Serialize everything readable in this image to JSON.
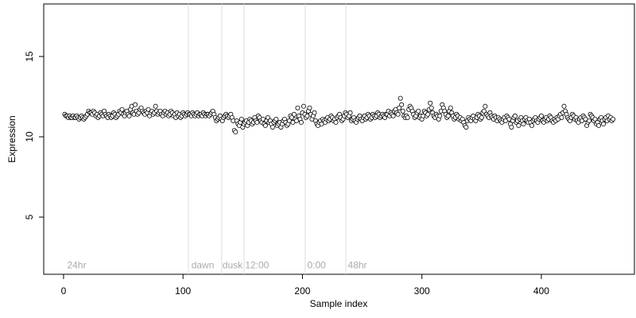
{
  "chart_data": {
    "type": "scatter",
    "xlabel": "Sample index",
    "ylabel": "Expression",
    "xlim": [
      -16.6,
      477.9
    ],
    "ylim": [
      1.44,
      18.27
    ],
    "xticks": [
      0,
      100,
      200,
      300,
      400
    ],
    "yticks": [
      5,
      10,
      15
    ],
    "vlines": [
      104.5,
      132.4,
      151.1,
      202.3,
      236.3
    ],
    "vline_color": "#dddddd",
    "annotations": [
      {
        "text": "24hr",
        "x": 3
      },
      {
        "text": "dawn",
        "x": 107
      },
      {
        "text": "dusk",
        "x": 133
      },
      {
        "text": "12:00",
        "x": 152
      },
      {
        "text": "0:00",
        "x": 204
      },
      {
        "text": "48hr",
        "x": 238
      }
    ],
    "annotation_y": 1.98,
    "series": [
      {
        "color": "#ffffff",
        "edge": "#000000",
        "x": [
          1,
          2,
          3,
          4,
          5,
          6,
          7,
          8,
          9,
          10,
          11,
          12,
          13,
          14,
          15,
          16,
          17,
          18,
          19,
          20,
          21,
          22,
          23,
          24,
          25,
          26,
          27,
          28,
          29,
          30,
          31,
          32,
          33,
          34,
          35,
          36,
          37,
          38,
          39,
          40,
          41,
          42,
          43,
          44,
          45,
          46,
          47,
          48,
          49,
          50,
          51,
          52,
          53,
          54,
          55,
          56,
          57,
          58,
          59,
          60,
          61,
          62,
          63,
          64,
          65,
          66,
          67,
          68,
          69,
          70,
          71,
          72,
          73,
          74,
          75,
          76,
          77,
          78,
          79,
          80,
          81,
          82,
          83,
          84,
          85,
          86,
          87,
          88,
          89,
          90,
          91,
          92,
          93,
          94,
          95,
          96,
          97,
          98,
          99,
          100,
          101,
          102,
          103,
          104,
          105,
          106,
          107,
          108,
          109,
          110,
          111,
          112,
          113,
          114,
          115,
          116,
          117,
          118,
          119,
          120,
          121,
          122,
          123,
          124,
          125,
          126,
          127,
          128,
          129,
          130,
          131,
          132,
          133,
          134,
          135,
          136,
          137,
          138,
          139,
          140,
          141,
          142,
          143,
          144,
          145,
          146,
          147,
          148,
          149,
          150,
          151,
          152,
          153,
          154,
          155,
          156,
          157,
          158,
          159,
          160,
          161,
          162,
          163,
          164,
          165,
          166,
          167,
          168,
          169,
          170,
          171,
          172,
          173,
          174,
          175,
          176,
          177,
          178,
          179,
          180,
          181,
          182,
          183,
          184,
          185,
          186,
          187,
          188,
          189,
          190,
          191,
          192,
          193,
          194,
          195,
          196,
          197,
          198,
          199,
          200,
          201,
          202,
          203,
          204,
          205,
          206,
          207,
          208,
          209,
          210,
          211,
          212,
          213,
          214,
          215,
          216,
          217,
          218,
          219,
          220,
          221,
          222,
          223,
          224,
          225,
          226,
          227,
          228,
          229,
          230,
          231,
          232,
          233,
          234,
          235,
          236,
          237,
          238,
          239,
          240,
          241,
          242,
          243,
          244,
          245,
          246,
          247,
          248,
          249,
          250,
          251,
          252,
          253,
          254,
          255,
          256,
          257,
          258,
          259,
          260,
          261,
          262,
          263,
          264,
          265,
          266,
          267,
          268,
          269,
          270,
          271,
          272,
          273,
          274,
          275,
          276,
          277,
          278,
          279,
          280,
          281,
          282,
          283,
          284,
          285,
          286,
          287,
          288,
          289,
          290,
          291,
          292,
          293,
          294,
          295,
          296,
          297,
          298,
          299,
          300,
          301,
          302,
          303,
          304,
          305,
          306,
          307,
          308,
          309,
          310,
          311,
          312,
          313,
          314,
          315,
          316,
          317,
          318,
          319,
          320,
          321,
          322,
          323,
          324,
          325,
          326,
          327,
          328,
          329,
          330,
          331,
          332,
          333,
          334,
          335,
          336,
          337,
          338,
          339,
          340,
          341,
          342,
          343,
          344,
          345,
          346,
          347,
          348,
          349,
          350,
          351,
          352,
          353,
          354,
          355,
          356,
          357,
          358,
          359,
          360,
          361,
          362,
          363,
          364,
          365,
          366,
          367,
          368,
          369,
          370,
          371,
          372,
          373,
          374,
          375,
          376,
          377,
          378,
          379,
          380,
          381,
          382,
          383,
          384,
          385,
          386,
          387,
          388,
          389,
          390,
          391,
          392,
          393,
          394,
          395,
          396,
          397,
          398,
          399,
          400,
          401,
          402,
          403,
          404,
          405,
          406,
          407,
          408,
          409,
          410,
          411,
          412,
          413,
          414,
          415,
          416,
          417,
          418,
          419,
          420,
          421,
          422,
          423,
          424,
          425,
          426,
          427,
          428,
          429,
          430,
          431,
          432,
          433,
          434,
          435,
          436,
          437,
          438,
          439,
          440,
          441,
          442,
          443,
          444,
          445,
          446,
          447,
          448,
          449,
          450,
          451,
          452,
          453,
          454,
          455,
          456,
          457,
          458,
          459,
          460
        ],
        "values": [
          11.4,
          11.3,
          11.3,
          11.2,
          11.3,
          11.2,
          11.2,
          11.3,
          11.2,
          11.2,
          11.3,
          11.2,
          11.1,
          11.2,
          11.3,
          11.2,
          11.1,
          11.2,
          11.3,
          11.4,
          11.6,
          11.5,
          11.5,
          11.4,
          11.6,
          11.5,
          11.3,
          11.4,
          11.2,
          11.3,
          11.5,
          11.4,
          11.3,
          11.6,
          11.4,
          11.3,
          11.2,
          11.4,
          11.3,
          11.2,
          11.3,
          11.5,
          11.4,
          11.2,
          11.3,
          11.4,
          11.6,
          11.5,
          11.7,
          11.4,
          11.3,
          11.5,
          11.6,
          11.4,
          11.3,
          11.7,
          11.9,
          11.5,
          11.4,
          12.0,
          11.6,
          11.4,
          11.5,
          11.7,
          11.8,
          11.6,
          11.5,
          11.4,
          11.6,
          11.5,
          11.7,
          11.3,
          11.5,
          11.6,
          11.4,
          11.5,
          11.9,
          11.6,
          11.4,
          11.5,
          11.6,
          11.4,
          11.3,
          11.5,
          11.6,
          11.4,
          11.5,
          11.3,
          11.4,
          11.6,
          11.5,
          11.3,
          11.4,
          11.2,
          11.5,
          11.3,
          11.4,
          11.2,
          11.3,
          11.5,
          11.4,
          11.3,
          11.4,
          11.5,
          11.4,
          11.4,
          11.3,
          11.5,
          11.4,
          11.3,
          11.4,
          11.5,
          11.3,
          11.4,
          11.4,
          11.3,
          11.5,
          11.4,
          11.3,
          11.4,
          11.4,
          11.3,
          11.4,
          11.5,
          11.6,
          11.4,
          11.2,
          11.0,
          11.1,
          11.2,
          11.3,
          11.1,
          11.0,
          11.2,
          11.3,
          11.4,
          11.3,
          11.2,
          11.3,
          11.4,
          11.2,
          11.0,
          10.4,
          10.3,
          11.0,
          10.8,
          10.7,
          10.9,
          11.1,
          10.6,
          10.8,
          10.9,
          11.0,
          10.7,
          10.9,
          11.1,
          11.0,
          10.8,
          10.9,
          11.2,
          11.0,
          10.9,
          11.3,
          11.2,
          11.0,
          10.9,
          11.1,
          10.8,
          10.7,
          11.0,
          11.2,
          10.9,
          11.0,
          10.8,
          10.6,
          10.9,
          11.0,
          11.1,
          10.7,
          10.8,
          10.9,
          10.6,
          10.8,
          11.0,
          11.1,
          10.9,
          10.7,
          10.8,
          11.0,
          11.3,
          11.2,
          10.9,
          11.4,
          11.1,
          11.0,
          11.8,
          11.3,
          11.1,
          10.9,
          11.5,
          11.9,
          11.4,
          11.2,
          11.3,
          11.6,
          11.8,
          11.4,
          11.1,
          11.3,
          11.5,
          11.0,
          10.8,
          10.7,
          10.9,
          11.0,
          10.8,
          11.1,
          11.0,
          10.9,
          11.1,
          11.2,
          11.0,
          11.1,
          11.3,
          11.2,
          11.0,
          11.1,
          10.9,
          11.2,
          11.3,
          11.4,
          11.2,
          11.0,
          11.1,
          11.3,
          11.5,
          11.4,
          11.2,
          11.3,
          11.5,
          11.0,
          11.1,
          11.2,
          11.0,
          10.9,
          11.1,
          11.2,
          11.3,
          11.1,
          11.0,
          11.2,
          11.3,
          11.1,
          11.2,
          11.4,
          11.3,
          11.1,
          11.2,
          11.4,
          11.3,
          11.2,
          11.3,
          11.5,
          11.4,
          11.2,
          11.3,
          11.4,
          11.3,
          11.2,
          11.4,
          11.4,
          11.6,
          11.3,
          11.5,
          11.4,
          11.3,
          11.6,
          11.7,
          11.5,
          11.4,
          11.8,
          12.4,
          12.0,
          11.6,
          11.3,
          11.2,
          11.3,
          11.2,
          11.7,
          11.9,
          11.8,
          11.6,
          11.4,
          11.2,
          11.3,
          11.5,
          11.6,
          11.2,
          11.3,
          11.1,
          11.3,
          11.6,
          11.5,
          11.3,
          11.4,
          11.7,
          12.1,
          11.8,
          11.5,
          11.3,
          11.2,
          11.4,
          11.3,
          11.1,
          11.3,
          11.6,
          12.0,
          11.8,
          11.6,
          11.4,
          11.2,
          11.3,
          11.6,
          11.8,
          11.5,
          11.3,
          11.1,
          11.2,
          11.4,
          11.3,
          11.1,
          11.2,
          11.0,
          11.1,
          10.9,
          10.7,
          10.6,
          11.0,
          11.2,
          11.1,
          11.0,
          11.2,
          11.3,
          11.1,
          11.0,
          11.2,
          11.4,
          11.3,
          11.1,
          11.2,
          11.5,
          11.6,
          11.9,
          11.4,
          11.3,
          11.2,
          11.5,
          11.3,
          11.2,
          11.1,
          11.3,
          11.2,
          11.0,
          11.2,
          11.1,
          11.0,
          10.9,
          11.1,
          11.2,
          11.0,
          11.3,
          11.2,
          11.1,
          10.8,
          10.6,
          11.0,
          11.2,
          11.3,
          10.9,
          11.0,
          10.7,
          11.1,
          11.2,
          11.0,
          10.8,
          11.1,
          11.2,
          11.0,
          10.9,
          11.1,
          10.9,
          10.7,
          11.0,
          11.1,
          11.2,
          11.0,
          10.9,
          11.1,
          11.2,
          11.3,
          11.0,
          10.9,
          11.1,
          11.2,
          11.0,
          11.1,
          11.3,
          11.2,
          11.0,
          10.9,
          11.1,
          11.0,
          11.2,
          11.1,
          11.3,
          11.4,
          11.2,
          11.5,
          11.9,
          11.6,
          11.4,
          11.2,
          11.1,
          11.0,
          11.2,
          11.4,
          11.3,
          11.1,
          11.2,
          11.0,
          10.9,
          11.1,
          11.2,
          11.0,
          11.3,
          11.2,
          11.1,
          10.7,
          10.9,
          11.0,
          11.4,
          11.3,
          11.2,
          11.0,
          11.1,
          10.8,
          10.9,
          10.7,
          11.1,
          11.2,
          11.0,
          10.8,
          11.1,
          11.2,
          11.0,
          11.3,
          11.1,
          11.2,
          11.0,
          11.1
        ]
      }
    ]
  }
}
